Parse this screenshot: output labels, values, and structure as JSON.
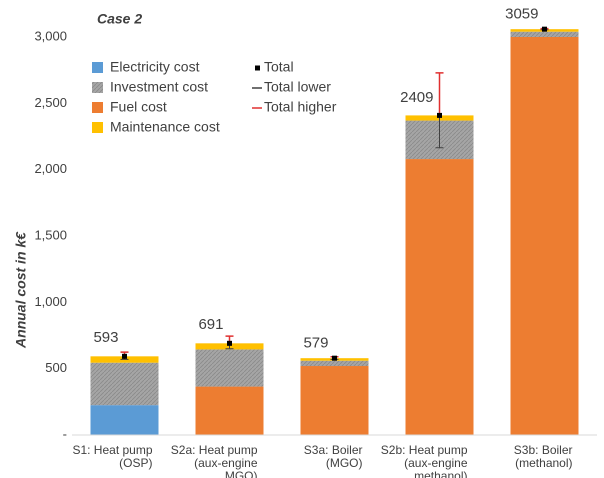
{
  "chart_data": {
    "type": "stacked_bar",
    "title": "Case 2",
    "y_label": "Annual cost in k€",
    "categories": [
      [
        "S1: Heat pump",
        "(OSP)"
      ],
      [
        "S2a: Heat pump",
        "(aux-engine",
        "MGO)"
      ],
      [
        "S3a: Boiler",
        "(MGO)"
      ],
      [
        "S2b: Heat pump",
        "(aux-engine",
        "methanol)"
      ],
      [
        "S3b: Boiler",
        "(methanol)"
      ]
    ],
    "series": [
      {
        "name": "Electricity cost",
        "color": "#5b9bd5",
        "values": [
          225,
          0,
          0,
          0,
          0
        ]
      },
      {
        "name": "Investment cost",
        "color": "#a5a5a5",
        "values": [
          320,
          280,
          40,
          290,
          40
        ]
      },
      {
        "name": "Fuel cost",
        "color": "#ed7d31",
        "values": [
          0,
          365,
          520,
          2080,
          3000
        ]
      },
      {
        "name": "Maintenance cost",
        "color": "#ffc000",
        "values": [
          48,
          46,
          19,
          39,
          19
        ]
      }
    ],
    "total": {
      "name": "Total",
      "color": "#000000",
      "values": [
        593,
        691,
        579,
        2409,
        3059
      ]
    },
    "total_lower": {
      "name": "Total lower",
      "color": "#404040",
      "values": [
        570,
        650,
        570,
        2165,
        3055
      ]
    },
    "total_higher": {
      "name": "Total higher",
      "color": "#e03030",
      "values": [
        625,
        745,
        590,
        2730,
        3063
      ]
    },
    "ylim": [
      0,
      3000
    ],
    "yticks": [
      {
        "value": 0,
        "label": "-"
      },
      500,
      {
        "value": 1000,
        "label": "1,000"
      },
      {
        "value": 1500,
        "label": "1,500"
      },
      {
        "value": 2000,
        "label": "2,000"
      },
      {
        "value": 2500,
        "label": "2,500"
      },
      {
        "value": 3000,
        "label": "3,000"
      }
    ],
    "grid": false,
    "legend": "upper left"
  }
}
